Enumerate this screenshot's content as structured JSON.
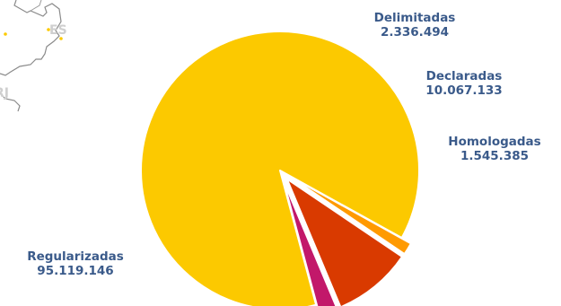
{
  "map_fragment": {
    "labels": [
      "ES",
      "RJ"
    ]
  },
  "chart_data": {
    "type": "pie",
    "slices": [
      {
        "label": "Regularizadas",
        "value_text": "95.119.146",
        "value": 95119146,
        "color": "#fcc900",
        "exploded": false
      },
      {
        "label": "Homologadas",
        "value_text": "1.545.385",
        "value": 1545385,
        "color": "#ff9a00",
        "exploded": true
      },
      {
        "label": "Declaradas",
        "value_text": "10.067.133",
        "value": 10067133,
        "color": "#d93a00",
        "exploded": true
      },
      {
        "label": "Delimitadas",
        "value_text": "2.336.494",
        "value": 2336494,
        "color": "#c2186a",
        "exploded": true
      }
    ],
    "label_color": "#3a5a8a"
  }
}
